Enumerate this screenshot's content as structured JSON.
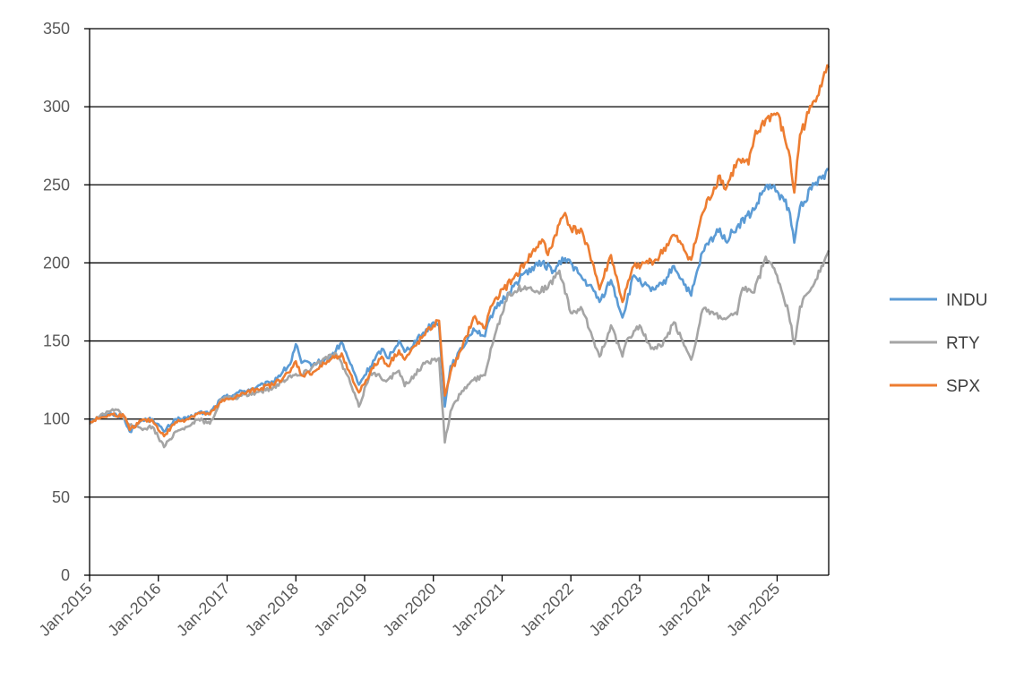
{
  "chart_data": {
    "type": "line",
    "title": "",
    "xlabel": "",
    "ylabel": "",
    "ylim": [
      0,
      350
    ],
    "yticks": [
      0,
      50,
      100,
      150,
      200,
      250,
      300,
      350
    ],
    "xlim": [
      "2015-01",
      "2025-10"
    ],
    "xticks": [
      "Jan-2015",
      "Jan-2016",
      "Jan-2017",
      "Jan-2018",
      "Jan-2019",
      "Jan-2020",
      "Jan-2021",
      "Jan-2022",
      "Jan-2023",
      "Jan-2024",
      "Jan-2025"
    ],
    "grid": "horizontal",
    "legend_position": "right",
    "series": [
      {
        "name": "INDU",
        "color": "#5B9BD5",
        "points": [
          [
            "2015-01",
            99
          ],
          [
            "2015-03",
            102
          ],
          [
            "2015-05",
            103
          ],
          [
            "2015-07",
            101
          ],
          [
            "2015-08",
            92
          ],
          [
            "2015-10",
            99
          ],
          [
            "2015-12",
            100
          ],
          [
            "2016-02",
            92
          ],
          [
            "2016-04",
            100
          ],
          [
            "2016-06",
            100
          ],
          [
            "2016-08",
            104
          ],
          [
            "2016-10",
            104
          ],
          [
            "2016-12",
            113
          ],
          [
            "2017-03",
            117
          ],
          [
            "2017-06",
            120
          ],
          [
            "2017-09",
            124
          ],
          [
            "2017-12",
            135
          ],
          [
            "2018-01",
            148
          ],
          [
            "2018-02",
            136
          ],
          [
            "2018-04",
            135
          ],
          [
            "2018-07",
            139
          ],
          [
            "2018-09",
            149
          ],
          [
            "2018-10",
            140
          ],
          [
            "2018-12",
            122
          ],
          [
            "2019-01",
            128
          ],
          [
            "2019-04",
            145
          ],
          [
            "2019-05",
            139
          ],
          [
            "2019-07",
            150
          ],
          [
            "2019-08",
            143
          ],
          [
            "2019-11",
            154
          ],
          [
            "2020-01",
            162
          ],
          [
            "2020-02",
            160
          ],
          [
            "2020-03",
            108
          ],
          [
            "2020-04",
            134
          ],
          [
            "2020-06",
            145
          ],
          [
            "2020-08",
            158
          ],
          [
            "2020-10",
            153
          ],
          [
            "2020-11",
            166
          ],
          [
            "2020-12",
            171
          ],
          [
            "2021-03",
            185
          ],
          [
            "2021-05",
            194
          ],
          [
            "2021-08",
            200
          ],
          [
            "2021-10",
            195
          ],
          [
            "2021-12",
            203
          ],
          [
            "2022-01",
            200
          ],
          [
            "2022-03",
            190
          ],
          [
            "2022-05",
            182
          ],
          [
            "2022-06",
            175
          ],
          [
            "2022-08",
            189
          ],
          [
            "2022-10",
            165
          ],
          [
            "2022-12",
            192
          ],
          [
            "2023-03",
            182
          ],
          [
            "2023-05",
            186
          ],
          [
            "2023-07",
            198
          ],
          [
            "2023-10",
            179
          ],
          [
            "2023-12",
            207
          ],
          [
            "2024-03",
            222
          ],
          [
            "2024-04",
            214
          ],
          [
            "2024-06",
            223
          ],
          [
            "2024-09",
            234
          ],
          [
            "2024-11",
            249
          ],
          [
            "2025-01",
            246
          ],
          [
            "2025-03",
            235
          ],
          [
            "2025-04",
            213
          ],
          [
            "2025-05",
            236
          ],
          [
            "2025-07",
            247
          ],
          [
            "2025-09",
            256
          ],
          [
            "2025-10",
            260
          ]
        ]
      },
      {
        "name": "RTY",
        "color": "#A5A5A5",
        "points": [
          [
            "2015-01",
            97
          ],
          [
            "2015-03",
            103
          ],
          [
            "2015-06",
            106
          ],
          [
            "2015-08",
            96
          ],
          [
            "2015-10",
            94
          ],
          [
            "2015-12",
            95
          ],
          [
            "2016-02",
            82
          ],
          [
            "2016-04",
            92
          ],
          [
            "2016-06",
            95
          ],
          [
            "2016-08",
            100
          ],
          [
            "2016-10",
            97
          ],
          [
            "2016-12",
            113
          ],
          [
            "2017-03",
            114
          ],
          [
            "2017-06",
            117
          ],
          [
            "2017-09",
            120
          ],
          [
            "2017-12",
            128
          ],
          [
            "2018-02",
            128
          ],
          [
            "2018-05",
            137
          ],
          [
            "2018-08",
            142
          ],
          [
            "2018-10",
            128
          ],
          [
            "2018-12",
            108
          ],
          [
            "2019-02",
            130
          ],
          [
            "2019-05",
            125
          ],
          [
            "2019-07",
            131
          ],
          [
            "2019-08",
            121
          ],
          [
            "2019-11",
            134
          ],
          [
            "2020-01",
            138
          ],
          [
            "2020-02",
            139
          ],
          [
            "2020-03",
            85
          ],
          [
            "2020-04",
            105
          ],
          [
            "2020-06",
            118
          ],
          [
            "2020-08",
            125
          ],
          [
            "2020-10",
            128
          ],
          [
            "2020-11",
            145
          ],
          [
            "2020-12",
            157
          ],
          [
            "2021-02",
            180
          ],
          [
            "2021-05",
            185
          ],
          [
            "2021-07",
            182
          ],
          [
            "2021-09",
            184
          ],
          [
            "2021-11",
            195
          ],
          [
            "2022-01",
            168
          ],
          [
            "2022-03",
            170
          ],
          [
            "2022-05",
            150
          ],
          [
            "2022-06",
            140
          ],
          [
            "2022-08",
            160
          ],
          [
            "2022-10",
            140
          ],
          [
            "2022-11",
            152
          ],
          [
            "2023-01",
            160
          ],
          [
            "2023-03",
            145
          ],
          [
            "2023-05",
            147
          ],
          [
            "2023-07",
            162
          ],
          [
            "2023-10",
            138
          ],
          [
            "2023-12",
            170
          ],
          [
            "2024-02",
            167
          ],
          [
            "2024-04",
            164
          ],
          [
            "2024-06",
            167
          ],
          [
            "2024-07",
            184
          ],
          [
            "2024-09",
            181
          ],
          [
            "2024-11",
            204
          ],
          [
            "2025-01",
            192
          ],
          [
            "2025-03",
            168
          ],
          [
            "2025-04",
            148
          ],
          [
            "2025-05",
            172
          ],
          [
            "2025-07",
            184
          ],
          [
            "2025-09",
            198
          ],
          [
            "2025-10",
            208
          ]
        ]
      },
      {
        "name": "SPX",
        "color": "#ED7D31",
        "points": [
          [
            "2015-01",
            98
          ],
          [
            "2015-03",
            101
          ],
          [
            "2015-05",
            103
          ],
          [
            "2015-07",
            102
          ],
          [
            "2015-08",
            93
          ],
          [
            "2015-10",
            99
          ],
          [
            "2015-12",
            99
          ],
          [
            "2016-02",
            89
          ],
          [
            "2016-04",
            98
          ],
          [
            "2016-06",
            100
          ],
          [
            "2016-08",
            104
          ],
          [
            "2016-10",
            103
          ],
          [
            "2016-12",
            111
          ],
          [
            "2017-03",
            115
          ],
          [
            "2017-06",
            119
          ],
          [
            "2017-09",
            122
          ],
          [
            "2017-12",
            130
          ],
          [
            "2018-01",
            137
          ],
          [
            "2018-02",
            128
          ],
          [
            "2018-04",
            130
          ],
          [
            "2018-07",
            138
          ],
          [
            "2018-09",
            142
          ],
          [
            "2018-10",
            132
          ],
          [
            "2018-12",
            117
          ],
          [
            "2019-02",
            130
          ],
          [
            "2019-04",
            140
          ],
          [
            "2019-05",
            134
          ],
          [
            "2019-07",
            144
          ],
          [
            "2019-08",
            138
          ],
          [
            "2019-11",
            152
          ],
          [
            "2020-01",
            160
          ],
          [
            "2020-02",
            163
          ],
          [
            "2020-03",
            115
          ],
          [
            "2020-04",
            130
          ],
          [
            "2020-06",
            145
          ],
          [
            "2020-08",
            165
          ],
          [
            "2020-10",
            158
          ],
          [
            "2020-11",
            172
          ],
          [
            "2020-12",
            178
          ],
          [
            "2021-03",
            190
          ],
          [
            "2021-05",
            200
          ],
          [
            "2021-08",
            215
          ],
          [
            "2021-09",
            205
          ],
          [
            "2021-11",
            225
          ],
          [
            "2021-12",
            232
          ],
          [
            "2022-01",
            222
          ],
          [
            "2022-03",
            220
          ],
          [
            "2022-05",
            198
          ],
          [
            "2022-06",
            183
          ],
          [
            "2022-08",
            205
          ],
          [
            "2022-10",
            175
          ],
          [
            "2022-12",
            198
          ],
          [
            "2023-02",
            200
          ],
          [
            "2023-04",
            202
          ],
          [
            "2023-07",
            218
          ],
          [
            "2023-10",
            202
          ],
          [
            "2023-12",
            232
          ],
          [
            "2024-03",
            256
          ],
          [
            "2024-04",
            247
          ],
          [
            "2024-06",
            265
          ],
          [
            "2024-08",
            263
          ],
          [
            "2024-09",
            280
          ],
          [
            "2024-11",
            292
          ],
          [
            "2025-01",
            296
          ],
          [
            "2025-03",
            272
          ],
          [
            "2025-04",
            245
          ],
          [
            "2025-05",
            282
          ],
          [
            "2025-07",
            300
          ],
          [
            "2025-09",
            318
          ],
          [
            "2025-10",
            325
          ]
        ]
      }
    ]
  }
}
